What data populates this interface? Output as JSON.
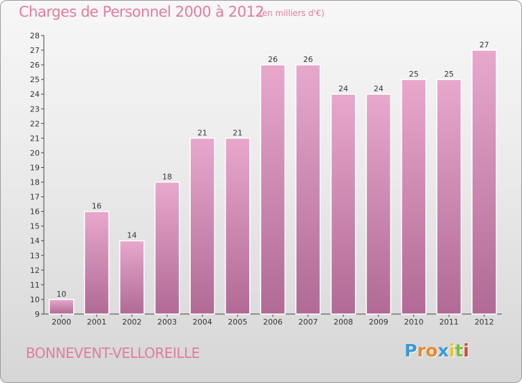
{
  "header": {
    "title": "Charges de Personnel 2000 à 2012",
    "unit": "(en milliers d'€)"
  },
  "commune": "BONNEVENT-VELLOREILLE",
  "logo": {
    "letters": [
      "P",
      "r",
      "o",
      "x",
      "i",
      "t",
      "i"
    ],
    "colors": [
      "#3a9ad9",
      "#e8892b",
      "#e8892b",
      "#3a9ad9",
      "#e8c52b",
      "#7cbf3a",
      "#e0453a"
    ]
  },
  "colors": {
    "bar_top": "#e8a8cc",
    "bar_bottom": "#b06a95",
    "title": "#e07d9f"
  },
  "chart_data": {
    "type": "bar",
    "title": "Charges de Personnel 2000 à 2012",
    "categories": [
      "2000",
      "2001",
      "2002",
      "2003",
      "2004",
      "2005",
      "2006",
      "2007",
      "2008",
      "2009",
      "2010",
      "2011",
      "2012"
    ],
    "values": [
      10,
      16,
      14,
      18,
      21,
      21,
      26,
      26,
      24,
      24,
      25,
      25,
      27
    ],
    "ylim": [
      9,
      28
    ],
    "yticks": [
      9,
      10,
      11,
      12,
      13,
      14,
      15,
      16,
      17,
      18,
      19,
      20,
      21,
      22,
      23,
      24,
      25,
      26,
      27,
      28
    ],
    "grid": false,
    "xlabel": "",
    "ylabel": ""
  }
}
